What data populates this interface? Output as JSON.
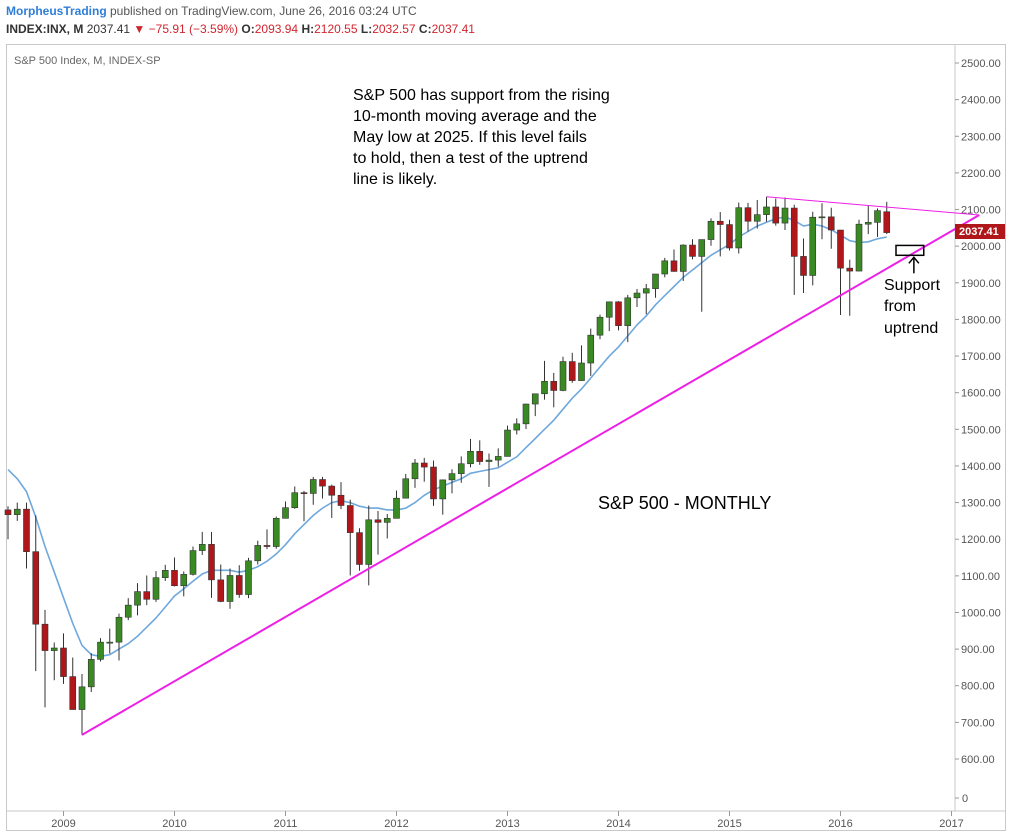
{
  "header": {
    "brand": "MorpheusTrading",
    "published": " published on TradingView.com, June 26, 2016 03:24 UTC",
    "symbol": "INDEX:INX, M",
    "last": "2037.41",
    "change": "▼ −75.91 (−3.59%)",
    "ohlc": {
      "o_label": "O:",
      "o": "2093.94",
      "h_label": "H:",
      "h": "2120.55",
      "l_label": "L:",
      "l": "2032.57",
      "c_label": "C:",
      "c": "2037.41"
    }
  },
  "chart": {
    "legend": "S&P 500 Index, M, INDEX-SP",
    "colors": {
      "up": "#3a8a24",
      "down": "#b0171b",
      "ma": "#6fa8dc",
      "trend": "#ee1fe6",
      "price_tag": "#b0171b"
    },
    "annotations": {
      "main_text": [
        "S&P 500 has support from the rising",
        "10-month moving average and the",
        "May low at 2025.  If this level fails",
        "to hold, then a test of the uptrend",
        "line is likely."
      ],
      "monthly_label": "S&P 500 - MONTHLY",
      "support_text": [
        "Support",
        "from",
        "uptrend"
      ]
    },
    "price_tag": "2037.41",
    "y_labels": [
      "2500.00",
      "2400.00",
      "2300.00",
      "2200.00",
      "2100.00",
      "2000.00",
      "1900.00",
      "1800.00",
      "1700.00",
      "1600.00",
      "1500.00",
      "1400.00",
      "1300.00",
      "1200.00",
      "1100.00",
      "1000.00",
      "900.00",
      "800.00",
      "700.00",
      "600.00",
      "0"
    ],
    "x_labels": [
      "2009",
      "2010",
      "2011",
      "2012",
      "2013",
      "2014",
      "2015",
      "2016",
      "2017"
    ]
  },
  "chart_data": {
    "type": "candlestick",
    "title": "S&P 500 Index, M, INDEX-SP",
    "x_range": [
      "2008-07",
      "2016-06"
    ],
    "y_range": [
      600,
      2550
    ],
    "candles": [
      [
        "2008-07",
        1280,
        1290,
        1200,
        1267
      ],
      [
        "2008-08",
        1267,
        1300,
        1250,
        1282
      ],
      [
        "2008-09",
        1282,
        1300,
        1120,
        1166
      ],
      [
        "2008-10",
        1166,
        1265,
        840,
        968
      ],
      [
        "2008-11",
        968,
        1007,
        741,
        896
      ],
      [
        "2008-12",
        896,
        918,
        815,
        903
      ],
      [
        "2009-01",
        903,
        943,
        805,
        825
      ],
      [
        "2009-02",
        825,
        877,
        735,
        735
      ],
      [
        "2009-03",
        735,
        832,
        666,
        797
      ],
      [
        "2009-04",
        797,
        889,
        783,
        872
      ],
      [
        "2009-05",
        872,
        930,
        866,
        919
      ],
      [
        "2009-06",
        919,
        956,
        888,
        919
      ],
      [
        "2009-07",
        919,
        997,
        869,
        987
      ],
      [
        "2009-08",
        987,
        1039,
        979,
        1020
      ],
      [
        "2009-09",
        1020,
        1080,
        992,
        1057
      ],
      [
        "2009-10",
        1057,
        1101,
        1020,
        1036
      ],
      [
        "2009-11",
        1036,
        1113,
        1029,
        1095
      ],
      [
        "2009-12",
        1095,
        1130,
        1086,
        1115
      ],
      [
        "2010-01",
        1115,
        1150,
        1071,
        1073
      ],
      [
        "2010-02",
        1073,
        1112,
        1044,
        1104
      ],
      [
        "2010-03",
        1104,
        1180,
        1101,
        1169
      ],
      [
        "2010-04",
        1169,
        1220,
        1157,
        1186
      ],
      [
        "2010-05",
        1186,
        1220,
        1040,
        1089
      ],
      [
        "2010-06",
        1089,
        1131,
        1028,
        1030
      ],
      [
        "2010-07",
        1030,
        1120,
        1010,
        1101
      ],
      [
        "2010-08",
        1101,
        1129,
        1040,
        1049
      ],
      [
        "2010-09",
        1049,
        1149,
        1039,
        1141
      ],
      [
        "2010-10",
        1141,
        1196,
        1131,
        1183
      ],
      [
        "2010-11",
        1183,
        1227,
        1173,
        1180
      ],
      [
        "2010-12",
        1180,
        1262,
        1174,
        1257
      ],
      [
        "2011-01",
        1257,
        1303,
        1257,
        1286
      ],
      [
        "2011-02",
        1286,
        1344,
        1283,
        1327
      ],
      [
        "2011-03",
        1327,
        1332,
        1249,
        1325
      ],
      [
        "2011-04",
        1325,
        1370,
        1294,
        1363
      ],
      [
        "2011-05",
        1363,
        1370,
        1311,
        1345
      ],
      [
        "2011-06",
        1345,
        1349,
        1258,
        1320
      ],
      [
        "2011-07",
        1320,
        1356,
        1282,
        1292
      ],
      [
        "2011-08",
        1292,
        1308,
        1101,
        1218
      ],
      [
        "2011-09",
        1218,
        1230,
        1114,
        1131
      ],
      [
        "2011-10",
        1131,
        1292,
        1074,
        1253
      ],
      [
        "2011-11",
        1253,
        1277,
        1158,
        1246
      ],
      [
        "2011-12",
        1246,
        1269,
        1202,
        1257
      ],
      [
        "2012-01",
        1257,
        1333,
        1258,
        1312
      ],
      [
        "2012-02",
        1312,
        1378,
        1312,
        1365
      ],
      [
        "2012-03",
        1365,
        1419,
        1340,
        1408
      ],
      [
        "2012-04",
        1408,
        1422,
        1357,
        1397
      ],
      [
        "2012-05",
        1397,
        1415,
        1291,
        1310
      ],
      [
        "2012-06",
        1310,
        1363,
        1267,
        1362
      ],
      [
        "2012-07",
        1362,
        1391,
        1325,
        1379
      ],
      [
        "2012-08",
        1379,
        1426,
        1354,
        1406
      ],
      [
        "2012-09",
        1406,
        1474,
        1396,
        1440
      ],
      [
        "2012-10",
        1440,
        1470,
        1403,
        1412
      ],
      [
        "2012-11",
        1412,
        1434,
        1343,
        1416
      ],
      [
        "2012-12",
        1416,
        1448,
        1398,
        1426
      ],
      [
        "2013-01",
        1426,
        1510,
        1426,
        1498
      ],
      [
        "2013-02",
        1498,
        1530,
        1486,
        1515
      ],
      [
        "2013-03",
        1515,
        1570,
        1501,
        1569
      ],
      [
        "2013-04",
        1569,
        1597,
        1536,
        1597
      ],
      [
        "2013-05",
        1597,
        1687,
        1581,
        1631
      ],
      [
        "2013-06",
        1631,
        1654,
        1560,
        1606
      ],
      [
        "2013-07",
        1606,
        1698,
        1604,
        1685
      ],
      [
        "2013-08",
        1685,
        1709,
        1627,
        1633
      ],
      [
        "2013-09",
        1633,
        1729,
        1633,
        1681
      ],
      [
        "2013-10",
        1681,
        1775,
        1646,
        1757
      ],
      [
        "2013-11",
        1757,
        1813,
        1746,
        1806
      ],
      [
        "2013-12",
        1806,
        1849,
        1768,
        1848
      ],
      [
        "2014-01",
        1848,
        1850,
        1770,
        1783
      ],
      [
        "2014-02",
        1783,
        1867,
        1738,
        1859
      ],
      [
        "2014-03",
        1859,
        1883,
        1834,
        1872
      ],
      [
        "2014-04",
        1872,
        1897,
        1814,
        1884
      ],
      [
        "2014-05",
        1884,
        1924,
        1859,
        1924
      ],
      [
        "2014-06",
        1924,
        1968,
        1915,
        1960
      ],
      [
        "2014-07",
        1960,
        1991,
        1930,
        1931
      ],
      [
        "2014-08",
        1931,
        2005,
        1905,
        2003
      ],
      [
        "2014-09",
        2003,
        2019,
        1964,
        1972
      ],
      [
        "2014-10",
        1972,
        2018,
        1821,
        2018
      ],
      [
        "2014-11",
        2018,
        2076,
        2001,
        2068
      ],
      [
        "2014-12",
        2068,
        2093,
        1972,
        2059
      ],
      [
        "2015-01",
        2059,
        2072,
        1988,
        1995
      ],
      [
        "2015-02",
        1995,
        2119,
        1980,
        2105
      ],
      [
        "2015-03",
        2105,
        2118,
        2040,
        2068
      ],
      [
        "2015-04",
        2068,
        2126,
        2048,
        2086
      ],
      [
        "2015-05",
        2086,
        2135,
        2067,
        2107
      ],
      [
        "2015-06",
        2107,
        2130,
        2056,
        2063
      ],
      [
        "2015-07",
        2063,
        2133,
        2044,
        2104
      ],
      [
        "2015-08",
        2104,
        2113,
        1867,
        1972
      ],
      [
        "2015-09",
        1972,
        2021,
        1872,
        1920
      ],
      [
        "2015-10",
        1920,
        2094,
        1893,
        2079
      ],
      [
        "2015-11",
        2079,
        2117,
        2019,
        2080
      ],
      [
        "2015-12",
        2080,
        2105,
        1993,
        2044
      ],
      [
        "2016-01",
        2044,
        2044,
        1812,
        1940
      ],
      [
        "2016-02",
        1940,
        1963,
        1810,
        1932
      ],
      [
        "2016-03",
        1932,
        2072,
        1932,
        2060
      ],
      [
        "2016-04",
        2060,
        2111,
        2033,
        2065
      ],
      [
        "2016-05",
        2065,
        2103,
        2025,
        2097
      ],
      [
        "2016-06",
        2094,
        2121,
        2033,
        2037
      ]
    ],
    "ma_10": [
      [
        "2008-07",
        1390
      ],
      [
        "2008-08",
        1365
      ],
      [
        "2008-09",
        1330
      ],
      [
        "2008-10",
        1260
      ],
      [
        "2008-11",
        1180
      ],
      [
        "2008-12",
        1110
      ],
      [
        "2009-01",
        1040
      ],
      [
        "2009-02",
        970
      ],
      [
        "2009-03",
        910
      ],
      [
        "2009-04",
        885
      ],
      [
        "2009-05",
        880
      ],
      [
        "2009-06",
        885
      ],
      [
        "2009-07",
        900
      ],
      [
        "2009-08",
        915
      ],
      [
        "2009-09",
        935
      ],
      [
        "2009-10",
        960
      ],
      [
        "2009-11",
        985
      ],
      [
        "2009-12",
        1015
      ],
      [
        "2010-01",
        1045
      ],
      [
        "2010-02",
        1065
      ],
      [
        "2010-03",
        1085
      ],
      [
        "2010-04",
        1105
      ],
      [
        "2010-05",
        1115
      ],
      [
        "2010-06",
        1115
      ],
      [
        "2010-07",
        1115
      ],
      [
        "2010-08",
        1110
      ],
      [
        "2010-09",
        1115
      ],
      [
        "2010-10",
        1125
      ],
      [
        "2010-11",
        1140
      ],
      [
        "2010-12",
        1160
      ],
      [
        "2011-01",
        1185
      ],
      [
        "2011-02",
        1215
      ],
      [
        "2011-03",
        1240
      ],
      [
        "2011-04",
        1265
      ],
      [
        "2011-05",
        1285
      ],
      [
        "2011-06",
        1300
      ],
      [
        "2011-07",
        1305
      ],
      [
        "2011-08",
        1300
      ],
      [
        "2011-09",
        1290
      ],
      [
        "2011-10",
        1285
      ],
      [
        "2011-11",
        1285
      ],
      [
        "2011-12",
        1280
      ],
      [
        "2012-01",
        1280
      ],
      [
        "2012-02",
        1285
      ],
      [
        "2012-03",
        1300
      ],
      [
        "2012-04",
        1320
      ],
      [
        "2012-05",
        1335
      ],
      [
        "2012-06",
        1345
      ],
      [
        "2012-07",
        1355
      ],
      [
        "2012-08",
        1365
      ],
      [
        "2012-09",
        1380
      ],
      [
        "2012-10",
        1385
      ],
      [
        "2012-11",
        1390
      ],
      [
        "2012-12",
        1395
      ],
      [
        "2013-01",
        1410
      ],
      [
        "2013-02",
        1425
      ],
      [
        "2013-03",
        1450
      ],
      [
        "2013-04",
        1475
      ],
      [
        "2013-05",
        1500
      ],
      [
        "2013-06",
        1525
      ],
      [
        "2013-07",
        1555
      ],
      [
        "2013-08",
        1585
      ],
      [
        "2013-09",
        1610
      ],
      [
        "2013-10",
        1640
      ],
      [
        "2013-11",
        1670
      ],
      [
        "2013-12",
        1700
      ],
      [
        "2014-01",
        1725
      ],
      [
        "2014-02",
        1755
      ],
      [
        "2014-03",
        1785
      ],
      [
        "2014-04",
        1810
      ],
      [
        "2014-05",
        1840
      ],
      [
        "2014-06",
        1865
      ],
      [
        "2014-07",
        1890
      ],
      [
        "2014-08",
        1915
      ],
      [
        "2014-09",
        1935
      ],
      [
        "2014-10",
        1955
      ],
      [
        "2014-11",
        1975
      ],
      [
        "2014-12",
        1990
      ],
      [
        "2015-01",
        2005
      ],
      [
        "2015-02",
        2025
      ],
      [
        "2015-03",
        2040
      ],
      [
        "2015-04",
        2055
      ],
      [
        "2015-05",
        2065
      ],
      [
        "2015-06",
        2075
      ],
      [
        "2015-07",
        2080
      ],
      [
        "2015-08",
        2070
      ],
      [
        "2015-09",
        2055
      ],
      [
        "2015-10",
        2060
      ],
      [
        "2015-11",
        2055
      ],
      [
        "2015-12",
        2045
      ],
      [
        "2016-01",
        2030
      ],
      [
        "2016-02",
        2015
      ],
      [
        "2016-03",
        2010
      ],
      [
        "2016-04",
        2012
      ],
      [
        "2016-05",
        2020
      ],
      [
        "2016-06",
        2025
      ]
    ],
    "uptrend_line": [
      [
        "2009-03",
        666
      ],
      [
        "2017-04",
        2085
      ]
    ],
    "resistance_line": [
      [
        "2015-05",
        2135
      ],
      [
        "2017-04",
        2085
      ]
    ],
    "support_box": {
      "x": [
        "2016-07",
        "2016-10"
      ],
      "y": [
        1975,
        2002
      ]
    }
  }
}
